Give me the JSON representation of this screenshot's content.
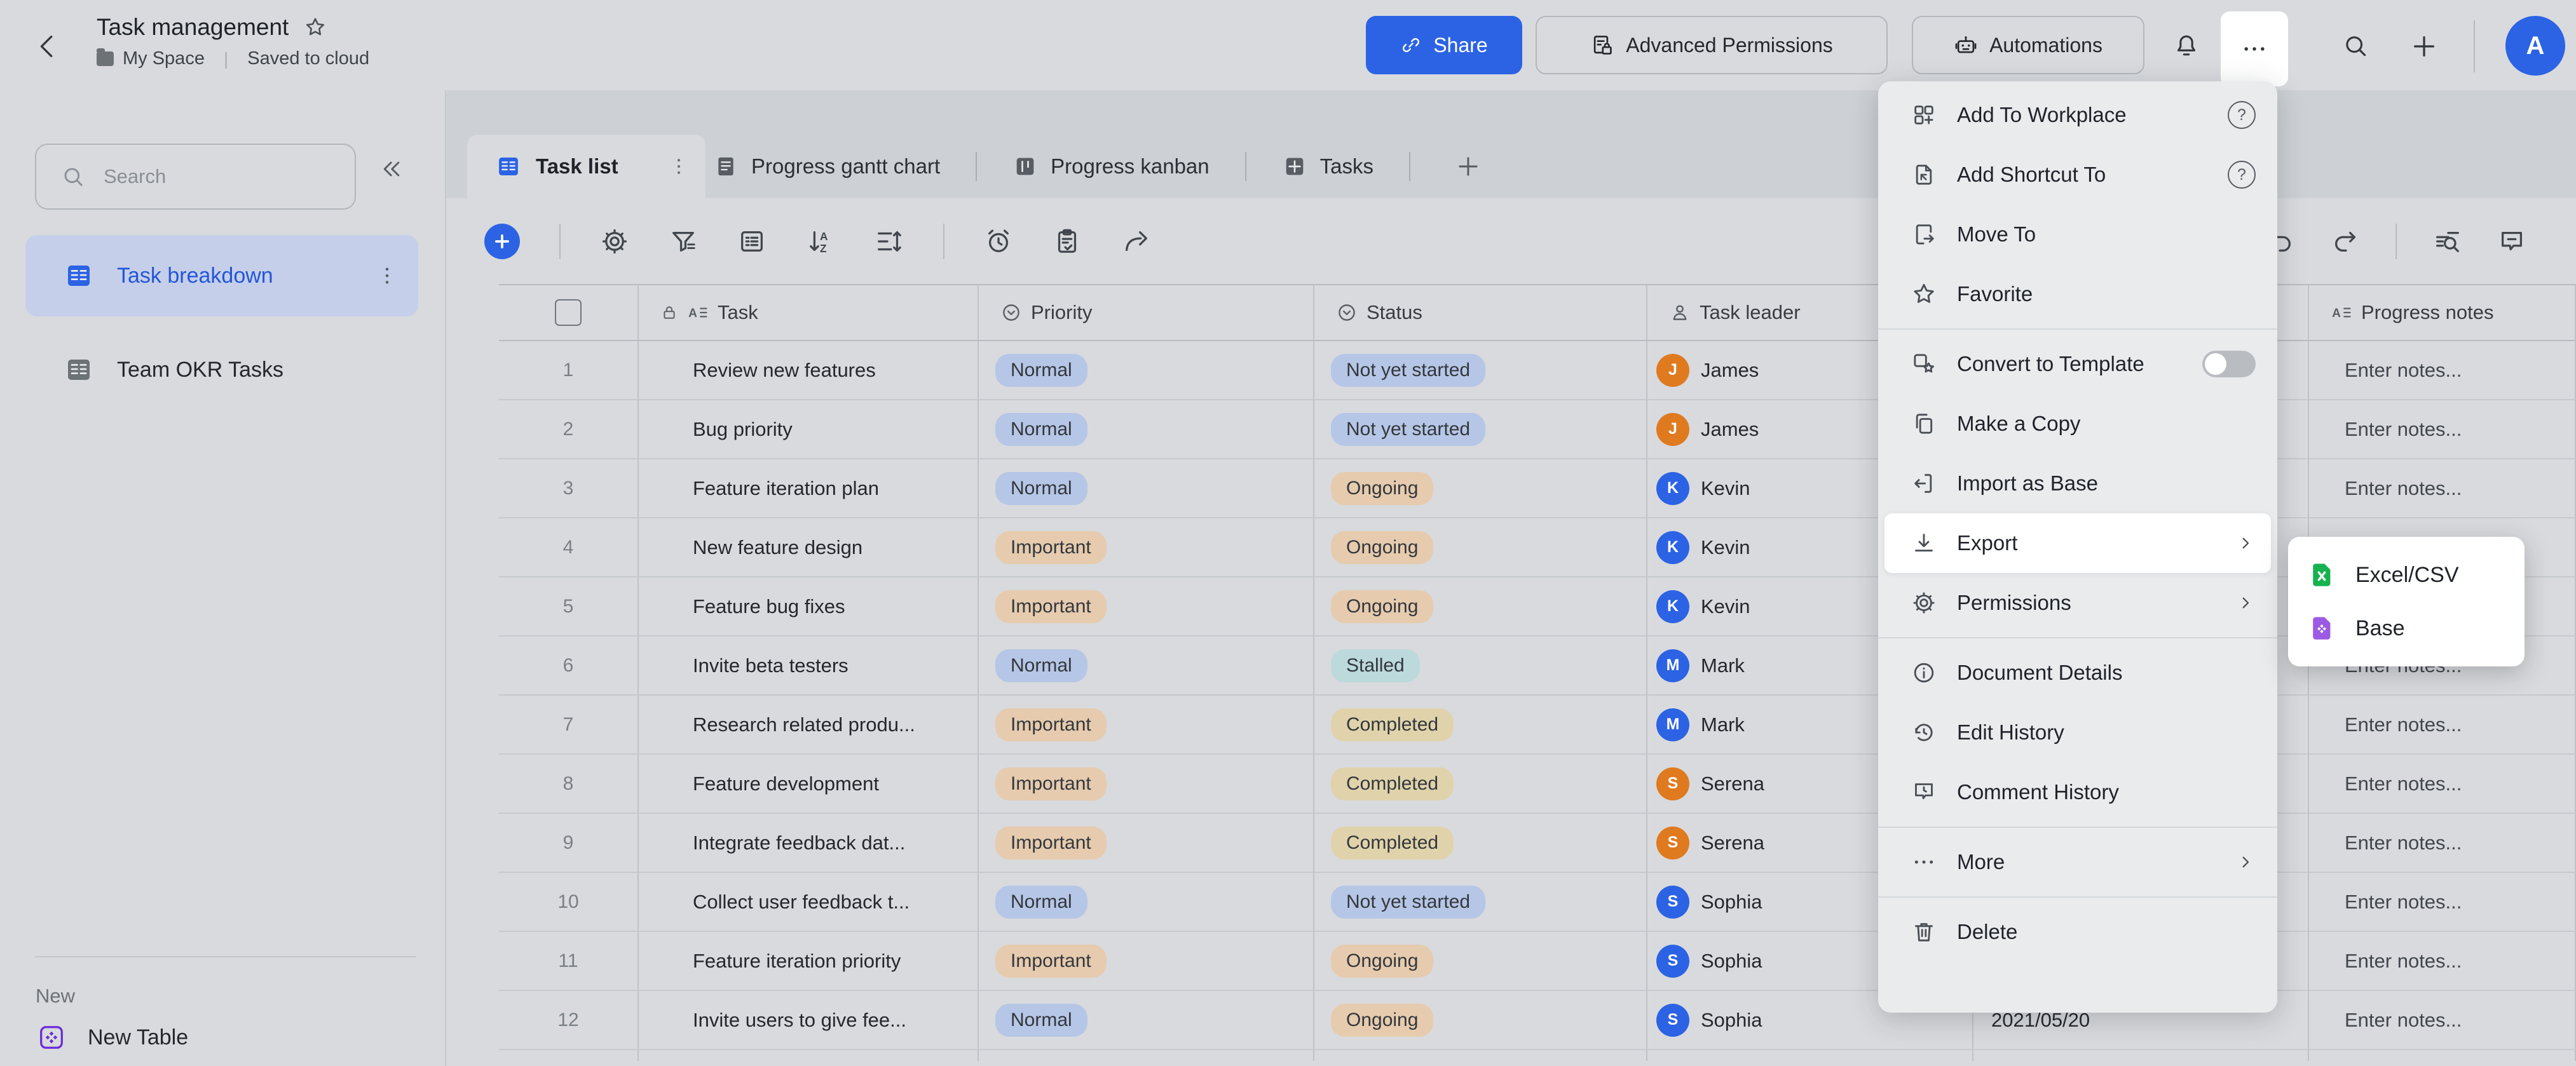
{
  "topbar": {
    "title": "Task management",
    "space": "My Space",
    "saved": "Saved to cloud",
    "share": "Share",
    "advanced_permissions": "Advanced Permissions",
    "automations": "Automations",
    "avatar": "A",
    "accent_color": "#2c63e4"
  },
  "sidebar": {
    "search_placeholder": "Search",
    "items": [
      {
        "label": "Task breakdown",
        "active": true
      },
      {
        "label": "Team OKR Tasks",
        "active": false
      }
    ],
    "new_label": "New",
    "new_table_label": "New Table"
  },
  "tabs": {
    "active": "Task list",
    "items": [
      {
        "label": "Task list",
        "icon": "table-solid",
        "active": true
      },
      {
        "label": "Progress gantt chart",
        "icon": "doc-solid",
        "active": false
      },
      {
        "label": "Progress kanban",
        "icon": "kanban-solid",
        "active": false
      },
      {
        "label": "Tasks",
        "icon": "grid-solid",
        "active": false
      },
      {
        "label": "+",
        "icon": "plus",
        "active": false
      }
    ]
  },
  "toolbar": {
    "left_icons": [
      "add",
      "divider",
      "gear",
      "funnel",
      "list-box",
      "sort",
      "row-height",
      "divider",
      "alarm",
      "clipboard",
      "share-arrow"
    ],
    "right_icons": [
      "undo",
      "redo",
      "divider",
      "find-list",
      "comment"
    ]
  },
  "table": {
    "columns": [
      {
        "key": "num",
        "label": ""
      },
      {
        "key": "task",
        "label": "Task"
      },
      {
        "key": "priority",
        "label": "Priority"
      },
      {
        "key": "status",
        "label": "Status"
      },
      {
        "key": "leader",
        "label": "Task leader"
      },
      {
        "key": "date",
        "label": ""
      },
      {
        "key": "notes",
        "label": "Progress notes"
      }
    ],
    "priority_colors": {
      "Normal": "#b6c6e6",
      "Important": "#e6cbae"
    },
    "status_colors": {
      "Not yet started": "#b6c6e6",
      "Ongoing": "#e6cbae",
      "Stalled": "#bcd9dc",
      "Completed": "#e0d3ab"
    },
    "avatar_colors": {
      "James": "#e07a1f",
      "Kevin": "#2c63e4",
      "Mark": "#2c63e4",
      "Serena": "#e07a1f",
      "Sophia": "#2c63e4"
    },
    "notes_placeholder": "Enter notes...",
    "rows": [
      {
        "num": "1",
        "task": "Review new features",
        "priority": "Normal",
        "status": "Not yet started",
        "leader": "James",
        "date": "",
        "notes": "Enter notes..."
      },
      {
        "num": "2",
        "task": "Bug priority",
        "priority": "Normal",
        "status": "Not yet started",
        "leader": "James",
        "date": "",
        "notes": "Enter notes..."
      },
      {
        "num": "3",
        "task": "Feature iteration plan",
        "priority": "Normal",
        "status": "Ongoing",
        "leader": "Kevin",
        "date": "",
        "notes": "Enter notes..."
      },
      {
        "num": "4",
        "task": "New feature design",
        "priority": "Important",
        "status": "Ongoing",
        "leader": "Kevin",
        "date": "",
        "notes": "Enter notes..."
      },
      {
        "num": "5",
        "task": "Feature bug fixes",
        "priority": "Important",
        "status": "Ongoing",
        "leader": "Kevin",
        "date": "",
        "notes": "Enter notes..."
      },
      {
        "num": "6",
        "task": "Invite beta testers",
        "priority": "Normal",
        "status": "Stalled",
        "leader": "Mark",
        "date": "",
        "notes": "Enter notes..."
      },
      {
        "num": "7",
        "task": "Research related produ...",
        "priority": "Important",
        "status": "Completed",
        "leader": "Mark",
        "date": "",
        "notes": "Enter notes..."
      },
      {
        "num": "8",
        "task": "Feature development",
        "priority": "Important",
        "status": "Completed",
        "leader": "Serena",
        "date": "",
        "notes": "Enter notes..."
      },
      {
        "num": "9",
        "task": "Integrate feedback dat...",
        "priority": "Important",
        "status": "Completed",
        "leader": "Serena",
        "date": "",
        "notes": "Enter notes..."
      },
      {
        "num": "10",
        "task": "Collect user feedback t...",
        "priority": "Normal",
        "status": "Not yet started",
        "leader": "Sophia",
        "date": "",
        "notes": "Enter notes..."
      },
      {
        "num": "11",
        "task": "Feature iteration priority",
        "priority": "Important",
        "status": "Ongoing",
        "leader": "Sophia",
        "date": "",
        "notes": "Enter notes..."
      },
      {
        "num": "12",
        "task": "Invite users to give fee...",
        "priority": "Normal",
        "status": "Ongoing",
        "leader": "Sophia",
        "date": "2021/05/20",
        "notes": "Enter notes..."
      }
    ]
  },
  "menu": {
    "items": [
      {
        "label": "Add To Workplace",
        "icon": "grid-plus",
        "right": "help"
      },
      {
        "label": "Add Shortcut To",
        "icon": "doc-shortcut",
        "right": "help"
      },
      {
        "label": "Move To",
        "icon": "doc-move"
      },
      {
        "label": "Favorite",
        "icon": "star"
      },
      {
        "divider": true
      },
      {
        "label": "Convert to Template",
        "icon": "template",
        "right": "toggle"
      },
      {
        "label": "Make a Copy",
        "icon": "copy"
      },
      {
        "label": "Import as Base",
        "icon": "import"
      },
      {
        "label": "Export",
        "icon": "download",
        "right": "chevron",
        "highlighted": true
      },
      {
        "label": "Permissions",
        "icon": "gear",
        "right": "chevron"
      },
      {
        "divider": true
      },
      {
        "label": "Document Details",
        "icon": "info"
      },
      {
        "label": "Edit History",
        "icon": "history"
      },
      {
        "label": "Comment History",
        "icon": "comment-clock"
      },
      {
        "divider": true
      },
      {
        "label": "More",
        "icon": "dots",
        "right": "chevron"
      },
      {
        "divider": true
      },
      {
        "label": "Delete",
        "icon": "trash"
      }
    ]
  },
  "submenu": {
    "items": [
      {
        "label": "Excel/CSV",
        "icon": "file-x",
        "color": "#17b24f"
      },
      {
        "label": "Base",
        "icon": "file-diamond",
        "color": "#9b5ae3"
      }
    ]
  }
}
